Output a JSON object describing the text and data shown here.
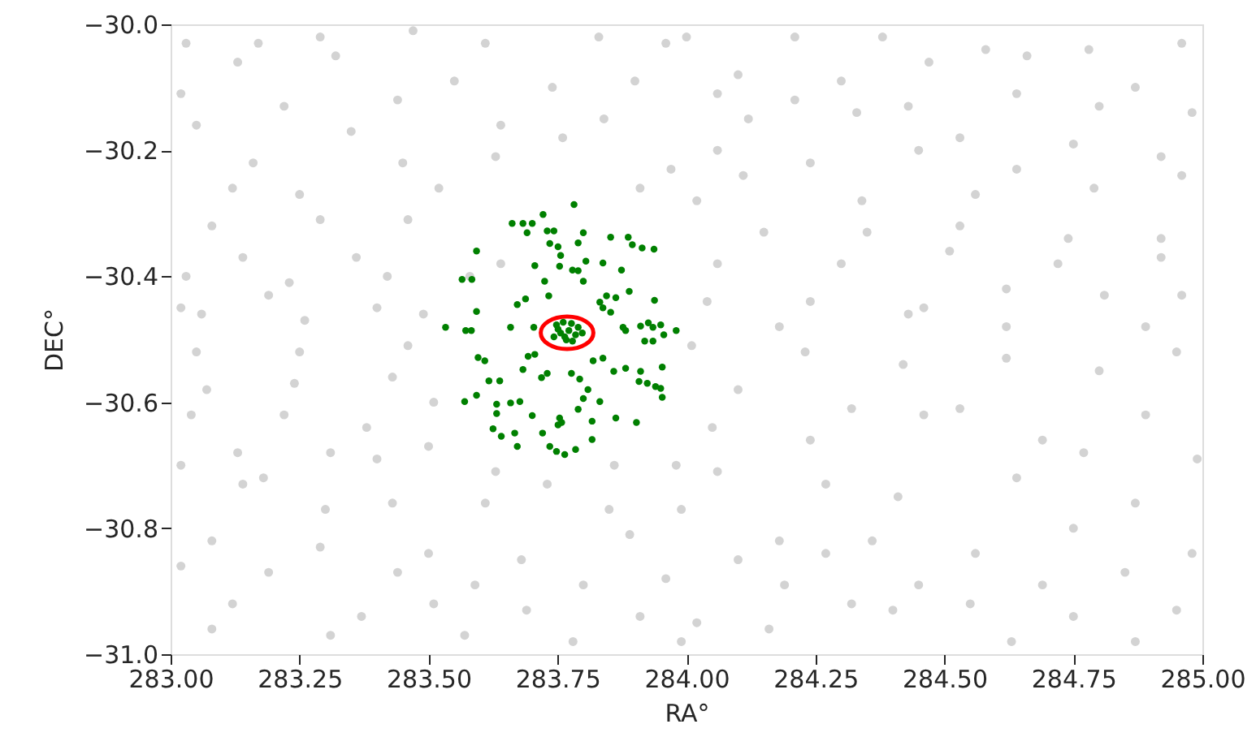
{
  "chart_data": {
    "type": "scatter",
    "xlabel": "RA°",
    "ylabel": "DEC°",
    "xlim": [
      283,
      285
    ],
    "ylim": [
      -31,
      -30
    ],
    "xticks": [
      {
        "value": 283,
        "label": "283.00"
      },
      {
        "value": 283.25,
        "label": "283.25"
      },
      {
        "value": 283.5,
        "label": "283.50"
      },
      {
        "value": 283.75,
        "label": "283.75"
      },
      {
        "value": 284,
        "label": "284.00"
      },
      {
        "value": 284.25,
        "label": "284.25"
      },
      {
        "value": 284.5,
        "label": "284.50"
      },
      {
        "value": 284.75,
        "label": "284.75"
      },
      {
        "value": 285,
        "label": "285.00"
      }
    ],
    "yticks": [
      {
        "value": -31,
        "label": "−31.0"
      },
      {
        "value": -30.8,
        "label": "−30.8"
      },
      {
        "value": -30.6,
        "label": "−30.6"
      },
      {
        "value": -30.4,
        "label": "−30.4"
      },
      {
        "value": -30.2,
        "label": "−30.2"
      },
      {
        "value": -30,
        "label": "−30.0"
      }
    ],
    "grid": false,
    "marker": "circle",
    "series": [
      {
        "color": "#d3d3d3",
        "x": [
          283.03,
          283.17,
          283.29,
          283.47,
          283.61,
          283.83,
          283.96,
          283.13,
          283.32,
          283.55,
          283.74,
          283.9,
          283.02,
          283.22,
          283.44,
          283.64,
          283.84,
          283.05,
          283.35,
          283.76,
          283.16,
          283.45,
          283.63,
          283.97,
          283.12,
          283.25,
          283.52,
          283.91,
          283.08,
          283.29,
          283.46,
          283.14,
          283.36,
          283.64,
          283.03,
          283.23,
          283.42,
          283.58,
          283.02,
          283.19,
          283.4,
          283.06,
          283.26,
          283.49,
          284.0,
          284.21,
          284.38,
          284.58,
          284.78,
          284.96,
          284.1,
          284.3,
          284.47,
          284.66,
          284.87,
          284.06,
          284.21,
          284.43,
          284.64,
          284.8,
          284.98,
          284.12,
          284.33,
          284.53,
          284.75,
          284.92,
          284.06,
          284.24,
          284.45,
          284.64,
          284.11,
          284.34,
          284.56,
          284.79,
          284.96,
          284.02,
          284.15,
          284.35,
          284.53,
          284.74,
          284.92,
          284.06,
          284.3,
          284.51,
          284.72,
          284.92,
          284.04,
          284.24,
          284.46,
          284.62,
          284.81,
          284.96,
          284.18,
          284.43,
          284.62,
          284.89,
          283.05,
          283.25,
          283.46,
          283.07,
          283.24,
          283.43,
          283.04,
          283.22,
          283.38,
          283.51,
          283.13,
          283.31,
          283.5,
          283.63,
          283.02,
          283.18,
          283.4,
          283.73,
          283.86,
          283.98,
          283.14,
          283.43,
          283.61,
          283.85,
          283.3,
          283.08,
          283.29,
          283.5,
          283.68,
          283.89,
          283.02,
          283.19,
          283.44,
          283.59,
          283.8,
          283.96,
          283.12,
          283.37,
          283.51,
          283.69,
          283.91,
          283.08,
          283.31,
          283.57,
          283.78,
          283.99,
          284.01,
          284.23,
          284.42,
          284.62,
          284.8,
          284.95,
          284.1,
          284.32,
          284.53,
          284.69,
          284.89,
          284.05,
          284.24,
          284.46,
          284.77,
          284.99,
          284.06,
          284.27,
          284.41,
          284.64,
          284.87,
          283.99,
          284.18,
          284.36,
          284.56,
          284.75,
          284.98,
          284.1,
          284.27,
          284.45,
          284.69,
          284.85,
          284.19,
          284.32,
          284.55,
          284.75,
          284.95,
          284.02,
          284.16,
          284.4,
          284.63,
          284.87
        ],
        "values": [
          -30.03,
          -30.03,
          -30.02,
          -30.01,
          -30.03,
          -30.02,
          -30.03,
          -30.06,
          -30.05,
          -30.09,
          -30.1,
          -30.09,
          -30.11,
          -30.13,
          -30.12,
          -30.16,
          -30.15,
          -30.16,
          -30.17,
          -30.18,
          -30.22,
          -30.22,
          -30.21,
          -30.23,
          -30.26,
          -30.27,
          -30.26,
          -30.26,
          -30.32,
          -30.31,
          -30.31,
          -30.37,
          -30.37,
          -30.38,
          -30.4,
          -30.41,
          -30.4,
          -30.4,
          -30.45,
          -30.43,
          -30.45,
          -30.46,
          -30.47,
          -30.46,
          -30.02,
          -30.02,
          -30.02,
          -30.04,
          -30.04,
          -30.03,
          -30.08,
          -30.09,
          -30.06,
          -30.05,
          -30.1,
          -30.11,
          -30.12,
          -30.13,
          -30.11,
          -30.13,
          -30.14,
          -30.15,
          -30.14,
          -30.18,
          -30.19,
          -30.21,
          -30.2,
          -30.22,
          -30.2,
          -30.23,
          -30.24,
          -30.28,
          -30.27,
          -30.26,
          -30.24,
          -30.28,
          -30.33,
          -30.33,
          -30.32,
          -30.34,
          -30.34,
          -30.38,
          -30.38,
          -30.36,
          -30.38,
          -30.37,
          -30.44,
          -30.44,
          -30.45,
          -30.42,
          -30.43,
          -30.43,
          -30.48,
          -30.46,
          -30.48,
          -30.48,
          -30.52,
          -30.52,
          -30.51,
          -30.58,
          -30.57,
          -30.56,
          -30.62,
          -30.62,
          -30.64,
          -30.6,
          -30.68,
          -30.68,
          -30.67,
          -30.71,
          -30.7,
          -30.72,
          -30.69,
          -30.73,
          -30.7,
          -30.7,
          -30.73,
          -30.76,
          -30.76,
          -30.77,
          -30.77,
          -30.82,
          -30.83,
          -30.84,
          -30.85,
          -30.81,
          -30.86,
          -30.87,
          -30.87,
          -30.89,
          -30.89,
          -30.88,
          -30.92,
          -30.94,
          -30.92,
          -30.93,
          -30.94,
          -30.96,
          -30.97,
          -30.97,
          -30.98,
          -30.98,
          -30.51,
          -30.52,
          -30.54,
          -30.53,
          -30.55,
          -30.52,
          -30.58,
          -30.61,
          -30.61,
          -30.66,
          -30.62,
          -30.64,
          -30.66,
          -30.62,
          -30.68,
          -30.69,
          -30.71,
          -30.73,
          -30.75,
          -30.72,
          -30.76,
          -30.77,
          -30.82,
          -30.82,
          -30.84,
          -30.8,
          -30.84,
          -30.85,
          -30.84,
          -30.89,
          -30.89,
          -30.87,
          -30.89,
          -30.92,
          -30.92,
          -30.94,
          -30.93,
          -30.95,
          -30.96,
          -30.93,
          -30.98,
          -30.98
        ]
      },
      {
        "color": "#008000",
        "x": [
          283.782,
          283.662,
          283.683,
          283.701,
          283.722,
          283.691,
          283.73,
          283.743,
          283.8,
          283.735,
          283.751,
          283.79,
          283.853,
          283.887,
          283.895,
          283.914,
          283.937,
          283.593,
          283.756,
          283.805,
          283.838,
          283.706,
          283.754,
          283.779,
          283.79,
          283.874,
          283.565,
          283.584,
          283.725,
          283.8,
          283.889,
          283.845,
          283.863,
          283.938,
          283.688,
          283.733,
          283.832,
          283.838,
          283.853,
          283.672,
          283.593,
          283.704,
          283.877,
          283.911,
          283.926,
          283.935,
          283.95,
          283.98,
          283.533,
          283.572,
          283.583,
          283.659,
          283.919,
          283.935,
          283.956,
          283.882,
          283.819,
          283.838,
          283.706,
          283.693,
          283.596,
          283.609,
          283.683,
          283.73,
          283.719,
          283.777,
          283.793,
          283.859,
          283.882,
          283.911,
          283.953,
          283.617,
          283.638,
          283.908,
          283.924,
          283.94,
          283.95,
          283.809,
          283.8,
          283.832,
          283.953,
          283.57,
          283.593,
          283.632,
          283.659,
          283.677,
          283.632,
          283.701,
          283.754,
          283.758,
          283.79,
          283.817,
          283.863,
          283.903,
          283.625,
          283.641,
          283.667,
          283.721,
          283.751,
          283.735,
          283.748,
          283.764,
          283.785,
          283.817,
          283.672,
          283.748,
          283.761,
          283.777,
          283.79,
          283.756,
          283.772,
          283.785,
          283.743,
          283.767,
          283.779,
          283.798,
          283.751,
          283.764
        ],
        "values": [
          -30.286,
          -30.316,
          -30.316,
          -30.316,
          -30.302,
          -30.331,
          -30.328,
          -30.328,
          -30.331,
          -30.348,
          -30.353,
          -30.347,
          -30.338,
          -30.338,
          -30.35,
          -30.355,
          -30.357,
          -30.36,
          -30.367,
          -30.376,
          -30.379,
          -30.383,
          -30.384,
          -30.39,
          -30.391,
          -30.39,
          -30.405,
          -30.405,
          -30.408,
          -30.408,
          -30.424,
          -30.431,
          -30.434,
          -30.438,
          -30.436,
          -30.431,
          -30.441,
          -30.45,
          -30.457,
          -30.445,
          -30.456,
          -30.481,
          -30.481,
          -30.479,
          -30.474,
          -30.481,
          -30.477,
          -30.486,
          -30.481,
          -30.486,
          -30.486,
          -30.481,
          -30.503,
          -30.503,
          -30.493,
          -30.486,
          -30.534,
          -30.53,
          -30.524,
          -30.527,
          -30.529,
          -30.534,
          -30.548,
          -30.554,
          -30.561,
          -30.554,
          -30.563,
          -30.551,
          -30.546,
          -30.551,
          -30.544,
          -30.566,
          -30.566,
          -30.567,
          -30.57,
          -30.575,
          -30.578,
          -30.58,
          -30.594,
          -30.599,
          -30.592,
          -30.599,
          -30.589,
          -30.603,
          -30.601,
          -30.599,
          -30.618,
          -30.621,
          -30.625,
          -30.632,
          -30.611,
          -30.63,
          -30.625,
          -30.632,
          -30.642,
          -30.654,
          -30.649,
          -30.649,
          -30.636,
          -30.67,
          -30.678,
          -30.683,
          -30.675,
          -30.659,
          -30.67,
          -30.477,
          -30.473,
          -30.475,
          -30.481,
          -30.49,
          -30.486,
          -30.493,
          -30.496,
          -30.501,
          -30.503,
          -30.49,
          -30.484,
          -30.496
        ]
      }
    ]
  }
}
